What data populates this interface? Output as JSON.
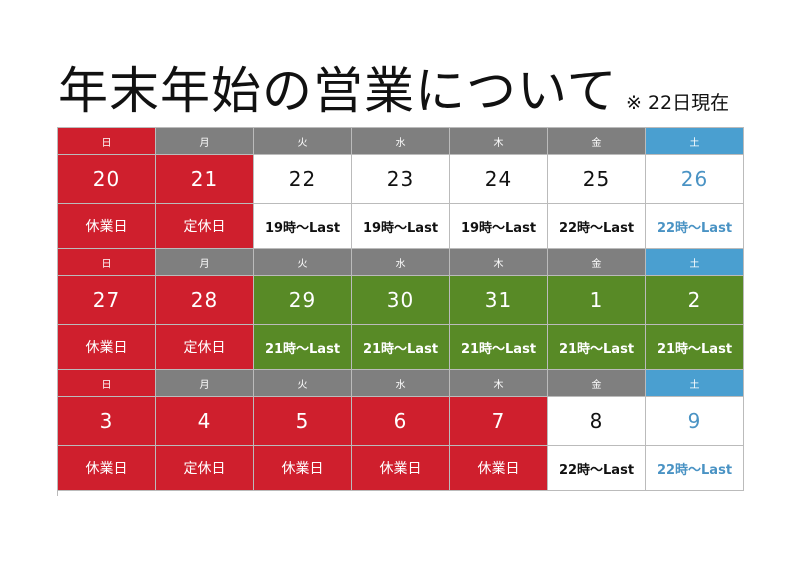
{
  "title": "年末年始の営業について",
  "note": "※ 22日現在",
  "weeks": [
    {
      "dow": [
        "日",
        "月",
        "火",
        "水",
        "木",
        "金",
        "土"
      ],
      "dates": [
        "20",
        "21",
        "22",
        "23",
        "24",
        "25",
        "26"
      ],
      "info": [
        "休業日",
        "定休日",
        "19時～Last",
        "19時～Last",
        "19時～Last",
        "22時～Last",
        "22時～Last"
      ]
    },
    {
      "dow": [
        "日",
        "月",
        "火",
        "水",
        "木",
        "金",
        "土"
      ],
      "dates": [
        "27",
        "28",
        "29",
        "30",
        "31",
        "1",
        "2"
      ],
      "info": [
        "休業日",
        "定休日",
        "21時～Last",
        "21時～Last",
        "21時～Last",
        "21時～Last",
        "21時～Last"
      ]
    },
    {
      "dow": [
        "日",
        "月",
        "火",
        "水",
        "木",
        "金",
        "土"
      ],
      "dates": [
        "3",
        "4",
        "5",
        "6",
        "7",
        "8",
        "9"
      ],
      "info": [
        "休業日",
        "定休日",
        "休業日",
        "休業日",
        "休業日",
        "22時～Last",
        "22時～Last"
      ]
    }
  ],
  "colors": {
    "closed": "#cf1f2d",
    "weekday_header": "#7f7f7f",
    "saturday": "#4a9fd0",
    "special_hours": "#588a26",
    "open": "#ffffff"
  }
}
